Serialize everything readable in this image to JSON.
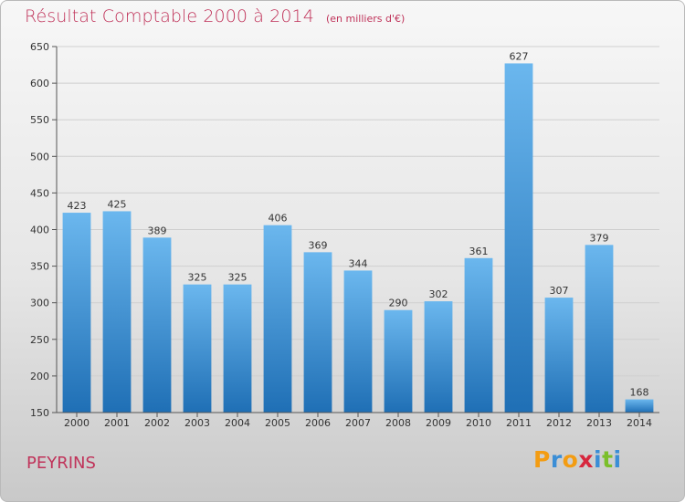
{
  "header": {
    "title": "Résultat Comptable 2000 à 2014",
    "subtitle": "(en milliers d'€)"
  },
  "footer": {
    "commune": "PEYRINS",
    "logo_letters": [
      "P",
      "r",
      "o",
      "x",
      "i",
      "t",
      "i"
    ],
    "logo_colors": [
      "#f39c12",
      "#3b8ed6",
      "#f39c12",
      "#d7263d",
      "#3b8ed6",
      "#7bbf2a",
      "#3b8ed6"
    ]
  },
  "colors": {
    "title": "#c0335a",
    "bar_top": "#6bb7ee",
    "bar_bottom": "#1f6fb5",
    "grid": "#cfcfcf",
    "axis": "#555555"
  },
  "chart_data": {
    "type": "bar",
    "title": "Résultat Comptable 2000 à 2014",
    "subtitle": "(en milliers d'€)",
    "xlabel": "",
    "ylabel": "",
    "categories": [
      "2000",
      "2001",
      "2002",
      "2003",
      "2004",
      "2005",
      "2006",
      "2007",
      "2008",
      "2009",
      "2010",
      "2011",
      "2012",
      "2013",
      "2014"
    ],
    "values": [
      423,
      425,
      389,
      325,
      325,
      406,
      369,
      344,
      290,
      302,
      361,
      627,
      307,
      379,
      168
    ],
    "ylim": [
      150,
      650
    ],
    "yticks": [
      150,
      200,
      250,
      300,
      350,
      400,
      450,
      500,
      550,
      600,
      650
    ],
    "grid": true,
    "data_labels": true
  }
}
